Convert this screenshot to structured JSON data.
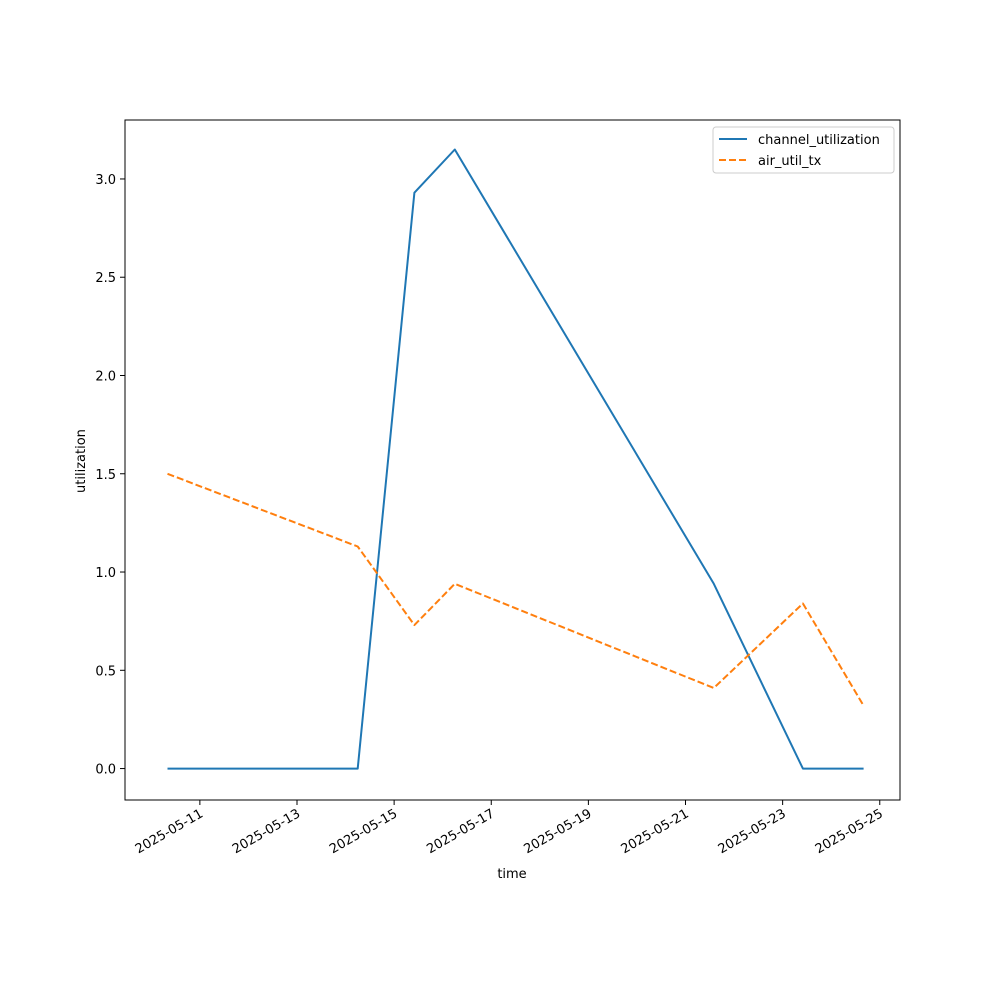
{
  "chart_data": {
    "type": "line",
    "title": "",
    "xlabel": "time",
    "ylabel": "utilization",
    "x_type": "date",
    "xlim": [
      "2025-05-09T11:00",
      "2025-05-25T10:00"
    ],
    "ylim": [
      -0.16,
      3.3
    ],
    "x_ticks": [
      "2025-05-11",
      "2025-05-13",
      "2025-05-15",
      "2025-05-17",
      "2025-05-19",
      "2025-05-21",
      "2025-05-23",
      "2025-05-25"
    ],
    "y_ticks": [
      "0.0",
      "0.5",
      "1.0",
      "1.5",
      "2.0",
      "2.5",
      "3.0"
    ],
    "grid": false,
    "legend_position": "top-right",
    "series": [
      {
        "name": "channel_utilization",
        "color": "#1f77b4",
        "style": "solid",
        "points": [
          {
            "x": "2025-05-10T08:00",
            "y": 0.0
          },
          {
            "x": "2025-05-14T06:00",
            "y": 0.0
          },
          {
            "x": "2025-05-15T10:00",
            "y": 2.93
          },
          {
            "x": "2025-05-16T06:00",
            "y": 3.15
          },
          {
            "x": "2025-05-21T14:00",
            "y": 0.94
          },
          {
            "x": "2025-05-23T10:00",
            "y": 0.0
          },
          {
            "x": "2025-05-24T16:00",
            "y": 0.0
          }
        ]
      },
      {
        "name": "air_util_tx",
        "color": "#ff7f0e",
        "style": "dashed",
        "points": [
          {
            "x": "2025-05-10T08:00",
            "y": 1.5
          },
          {
            "x": "2025-05-14T06:00",
            "y": 1.13
          },
          {
            "x": "2025-05-15T10:00",
            "y": 0.73
          },
          {
            "x": "2025-05-16T06:00",
            "y": 0.94
          },
          {
            "x": "2025-05-21T14:00",
            "y": 0.41
          },
          {
            "x": "2025-05-23T10:00",
            "y": 0.84
          },
          {
            "x": "2025-05-24T16:00",
            "y": 0.32
          }
        ]
      }
    ]
  }
}
